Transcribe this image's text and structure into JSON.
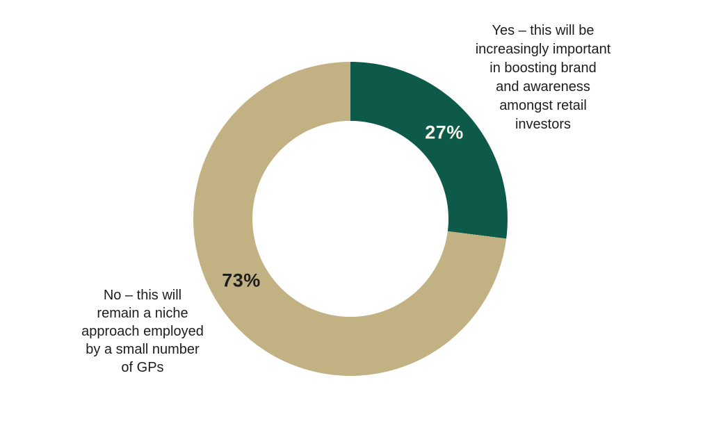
{
  "chart_data": {
    "type": "pie",
    "variant": "donut",
    "start_angle_deg": 0,
    "direction": "clockwise",
    "background": "#ffffff",
    "legend": "none",
    "inner_radius_ratio": 0.62,
    "segments": [
      {
        "name": "Yes",
        "value": 27,
        "color": "#0d5a4a",
        "value_label": "27%",
        "value_label_color": "#f7f3e7",
        "callout": "Yes – this will be\nincreasingly important\nin boosting brand\nand awareness\namongst retail\ninvestors"
      },
      {
        "name": "No",
        "value": 73,
        "color": "#c2b283",
        "value_label": "73%",
        "value_label_color": "#1d1d1b",
        "callout": "No – this will\nremain a niche\napproach employed\nby a small number\nof GPs"
      }
    ]
  }
}
